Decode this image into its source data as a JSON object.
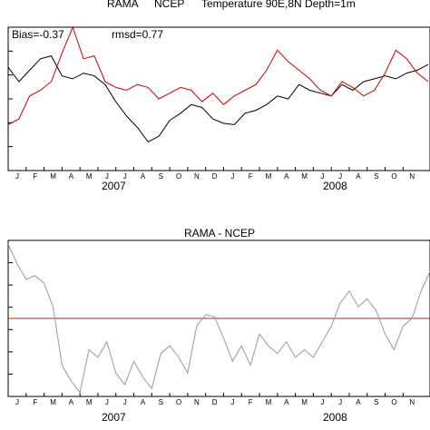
{
  "chart_data": [
    {
      "type": "line",
      "title_parts": {
        "rama": "RAMA",
        "ncep": "NCEP",
        "rest": "Temperature 90E,8N Depth=1m"
      },
      "annotations": {
        "bias": "Bias=-0.37",
        "rmsd": "rmsd=0.77"
      },
      "month_labels": [
        "J",
        "F",
        "M",
        "A",
        "M",
        "J",
        "J",
        "A",
        "S",
        "O",
        "N",
        "D",
        "J",
        "F",
        "M",
        "A",
        "M",
        "J",
        "J",
        "A",
        "S",
        "O",
        "N"
      ],
      "year_labels": [
        "2007",
        "2008"
      ],
      "series_colors": {
        "rama": "#000000",
        "ncep": "#cc0000"
      },
      "ylim": [
        0,
        1
      ],
      "x_range": [
        0,
        23.5
      ],
      "series": [
        {
          "name": "RAMA",
          "x": [
            0,
            0.6,
            1.2,
            1.8,
            2.4,
            3,
            3.6,
            4.2,
            4.8,
            5.4,
            6,
            6.6,
            7.2,
            7.8,
            8.4,
            9,
            9.6,
            10.2,
            10.8,
            11.4,
            12,
            12.6,
            13.2,
            13.8,
            14.4,
            15,
            15.6,
            16.2,
            16.8,
            17.4,
            18,
            18.6,
            19.2,
            19.8,
            20.4,
            21,
            21.6,
            22.2,
            22.8,
            23.4
          ],
          "y": [
            0.72,
            0.62,
            0.7,
            0.78,
            0.8,
            0.66,
            0.64,
            0.68,
            0.66,
            0.6,
            0.48,
            0.38,
            0.3,
            0.2,
            0.24,
            0.35,
            0.4,
            0.46,
            0.44,
            0.36,
            0.33,
            0.32,
            0.4,
            0.42,
            0.46,
            0.52,
            0.5,
            0.6,
            0.56,
            0.54,
            0.52,
            0.6,
            0.56,
            0.62,
            0.64,
            0.66,
            0.64,
            0.68,
            0.7,
            0.74
          ]
        },
        {
          "name": "NCEP",
          "x": [
            0,
            0.6,
            1.2,
            1.8,
            2.4,
            3,
            3.6,
            4.2,
            4.8,
            5.4,
            6,
            6.6,
            7.2,
            7.8,
            8.4,
            9,
            9.6,
            10.2,
            10.8,
            11.4,
            12,
            12.6,
            13.2,
            13.8,
            14.4,
            15,
            15.6,
            16.2,
            16.8,
            17.4,
            18,
            18.6,
            19.2,
            19.8,
            20.4,
            21,
            21.6,
            22.2,
            22.8,
            23.4
          ],
          "y": [
            0.32,
            0.36,
            0.52,
            0.56,
            0.62,
            0.82,
            1.0,
            0.78,
            0.8,
            0.62,
            0.58,
            0.56,
            0.6,
            0.58,
            0.5,
            0.54,
            0.58,
            0.56,
            0.48,
            0.54,
            0.46,
            0.52,
            0.56,
            0.6,
            0.7,
            0.84,
            0.76,
            0.7,
            0.64,
            0.56,
            0.52,
            0.62,
            0.58,
            0.52,
            0.56,
            0.68,
            0.84,
            0.78,
            0.68,
            0.62
          ]
        }
      ]
    },
    {
      "type": "line",
      "title": "RAMA - NCEP",
      "month_labels": [
        "J",
        "F",
        "M",
        "A",
        "M",
        "J",
        "J",
        "A",
        "S",
        "O",
        "N",
        "D",
        "J",
        "F",
        "M",
        "A",
        "M",
        "J",
        "J",
        "A",
        "S",
        "O",
        "N"
      ],
      "year_labels": [
        "2007",
        "2008"
      ],
      "zero_line_color": "#b22222",
      "line_color": "#999999",
      "ylim": [
        -1,
        1
      ],
      "x_range": [
        0,
        23.5
      ],
      "series": [
        {
          "name": "RAMA - NCEP",
          "x": [
            0,
            0.5,
            1,
            1.5,
            2,
            2.5,
            3,
            3.5,
            4,
            4.5,
            5,
            5.5,
            6,
            6.5,
            7,
            7.5,
            8,
            8.5,
            9,
            9.5,
            10,
            10.5,
            11,
            11.5,
            12,
            12.5,
            13,
            13.5,
            14,
            14.5,
            15,
            15.5,
            16,
            16.5,
            17,
            17.5,
            18,
            18.5,
            19,
            19.5,
            20,
            20.5,
            21,
            21.5,
            22,
            22.5,
            23,
            23.5
          ],
          "y": [
            0.95,
            0.7,
            0.5,
            0.55,
            0.45,
            0.15,
            -0.6,
            -0.8,
            -0.95,
            -0.4,
            -0.5,
            -0.3,
            -0.7,
            -0.85,
            -0.55,
            -0.75,
            -0.9,
            -0.45,
            -0.35,
            -0.5,
            -0.7,
            -0.1,
            0.05,
            0.02,
            -0.25,
            -0.55,
            -0.35,
            -0.6,
            -0.2,
            -0.35,
            -0.45,
            -0.3,
            -0.5,
            -0.4,
            -0.5,
            -0.3,
            -0.1,
            0.2,
            0.35,
            0.15,
            0.25,
            0.1,
            -0.2,
            -0.4,
            -0.1,
            0.0,
            0.35,
            0.6
          ]
        }
      ]
    }
  ]
}
